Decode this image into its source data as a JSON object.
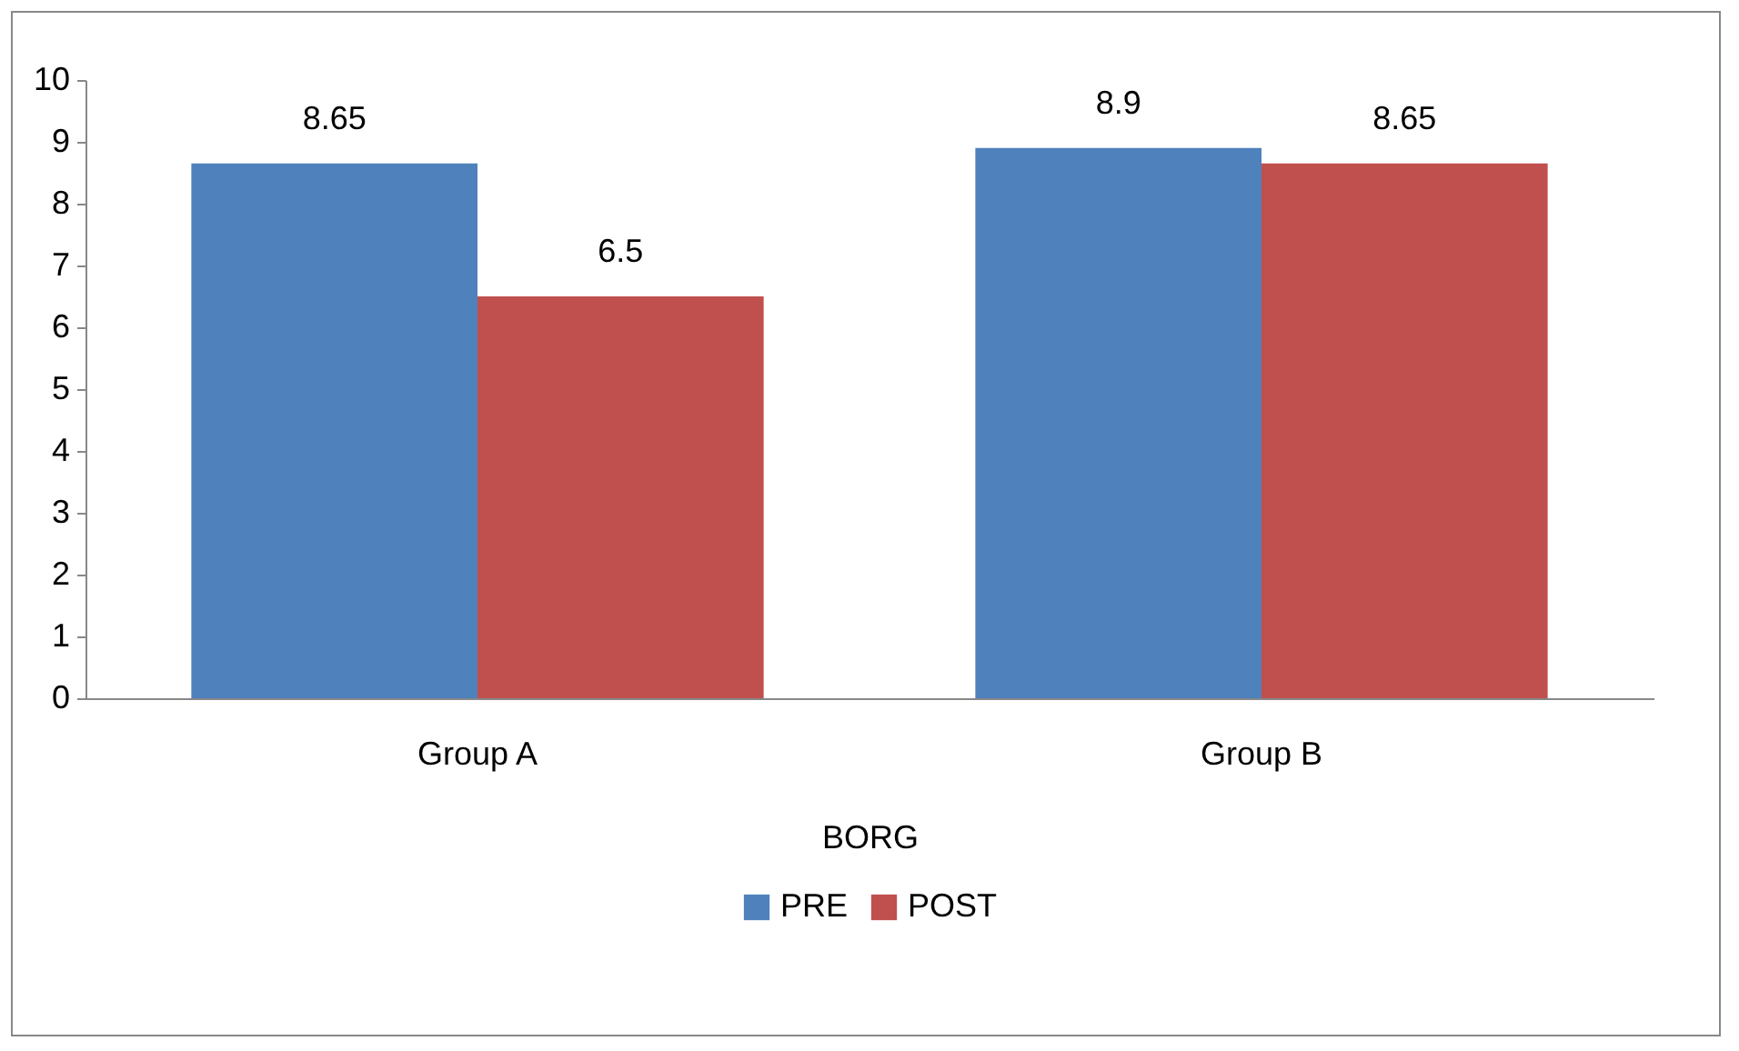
{
  "chart_data": {
    "type": "bar",
    "xlabel": "BORG",
    "categories": [
      "Group A",
      "Group B"
    ],
    "series": [
      {
        "name": "PRE",
        "color": "#4f81bd",
        "values": [
          8.65,
          8.9
        ]
      },
      {
        "name": "POST",
        "color": "#c0504d",
        "values": [
          6.5,
          8.65
        ]
      }
    ],
    "ylim": [
      0,
      10
    ],
    "yticks": [
      0,
      1,
      2,
      3,
      4,
      5,
      6,
      7,
      8,
      9,
      10
    ],
    "grid": false,
    "data_labels": true,
    "legend": "bottom"
  }
}
